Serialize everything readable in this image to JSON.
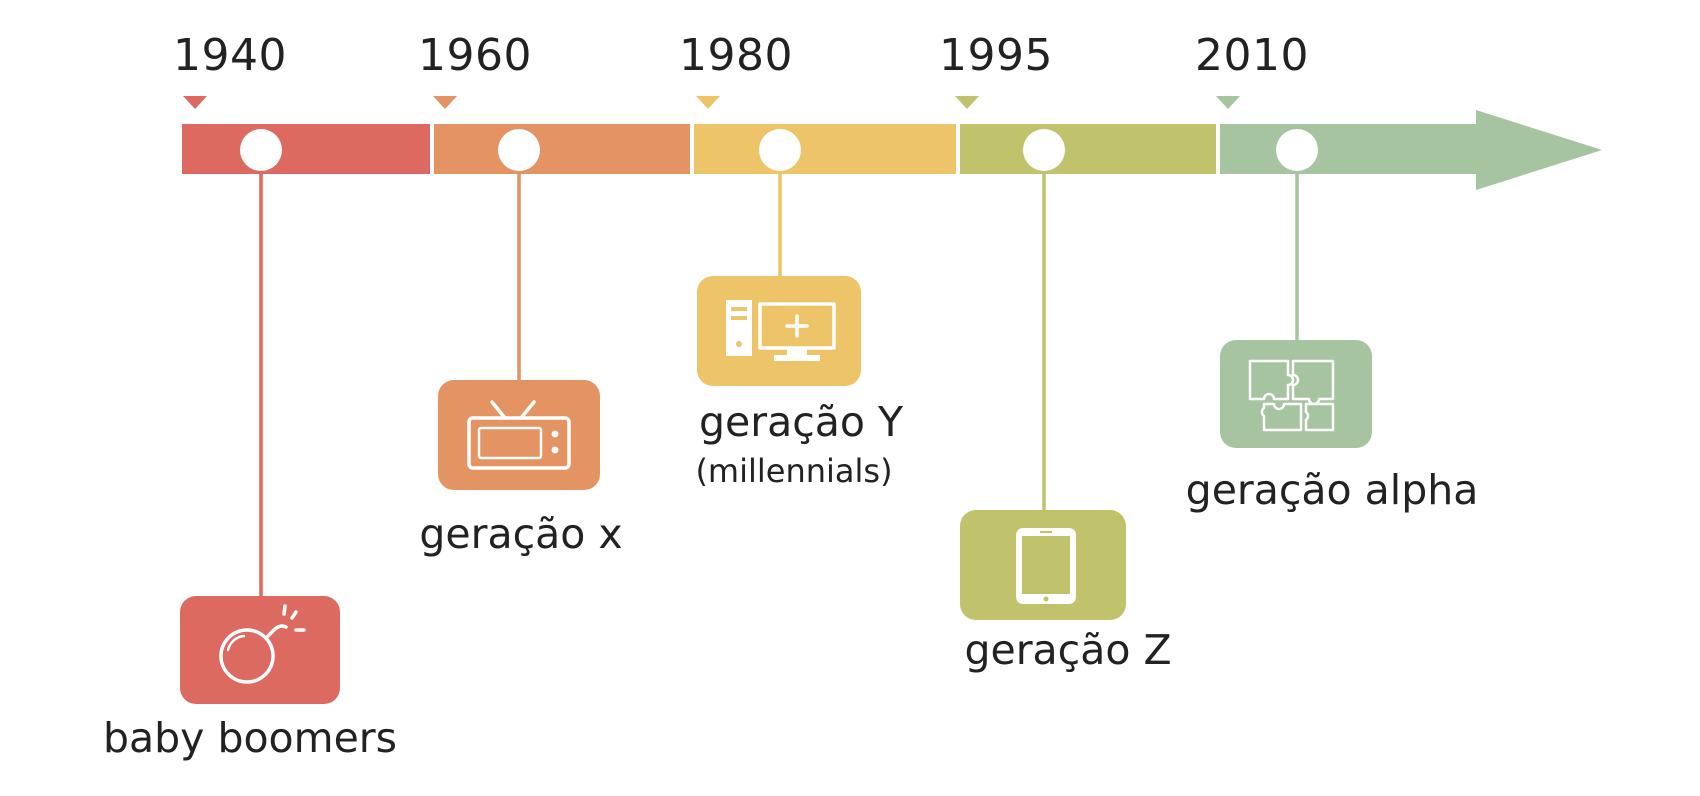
{
  "timeline": {
    "generations": [
      {
        "year": "1940",
        "name": "baby boomers",
        "icon": "bomb-icon",
        "color": "#dd6a60"
      },
      {
        "year": "1960",
        "name": "geração x",
        "icon": "tv-icon",
        "color": "#e49363"
      },
      {
        "year": "1980",
        "name": "geração Y",
        "subname": "(millennials)",
        "icon": "computer-icon",
        "color": "#edc468"
      },
      {
        "year": "1995",
        "name": "geração Z",
        "icon": "smartphone-icon",
        "color": "#c0c26c"
      },
      {
        "year": "2010",
        "name": "geração alpha",
        "icon": "puzzle-icon",
        "color": "#a7c4a1"
      }
    ],
    "arrow_color": "#a7c4a1"
  }
}
